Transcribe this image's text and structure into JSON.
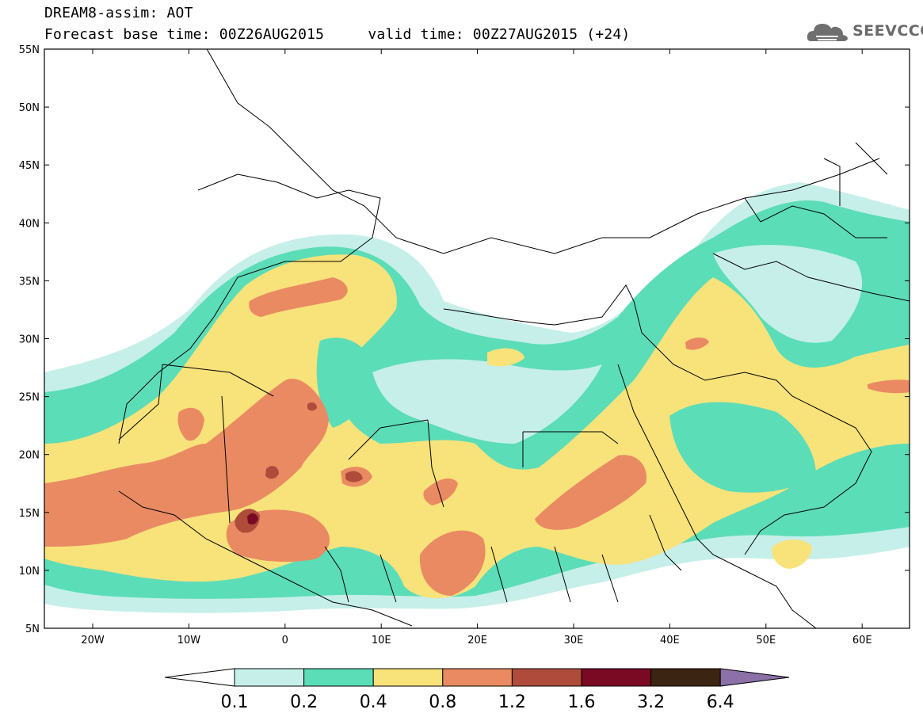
{
  "header": {
    "title_line1": "DREAM8-assim: AOT",
    "title_line2": "Forecast base time: 00Z26AUG2015     valid time: 00Z27AUG2015 (+24)"
  },
  "logo": {
    "text": "SEEVCCC",
    "icon": "cloud-icon"
  },
  "map": {
    "lat_labels": [
      "55N",
      "50N",
      "45N",
      "40N",
      "35N",
      "30N",
      "25N",
      "20N",
      "15N",
      "10N",
      "5N"
    ],
    "lon_labels": [
      "20W",
      "10W",
      "0",
      "10E",
      "20E",
      "30E",
      "40E",
      "50E",
      "60E"
    ]
  },
  "colorbar": {
    "ticks": [
      "0.1",
      "0.2",
      "0.4",
      "0.8",
      "1.2",
      "1.6",
      "3.2",
      "6.4"
    ],
    "colors": [
      "#ffffff",
      "#c6efe9",
      "#5bddb8",
      "#f8e27a",
      "#ea8a62",
      "#ae4b3a",
      "#7a0a24",
      "#3c2412",
      "#8c70a8"
    ]
  }
}
